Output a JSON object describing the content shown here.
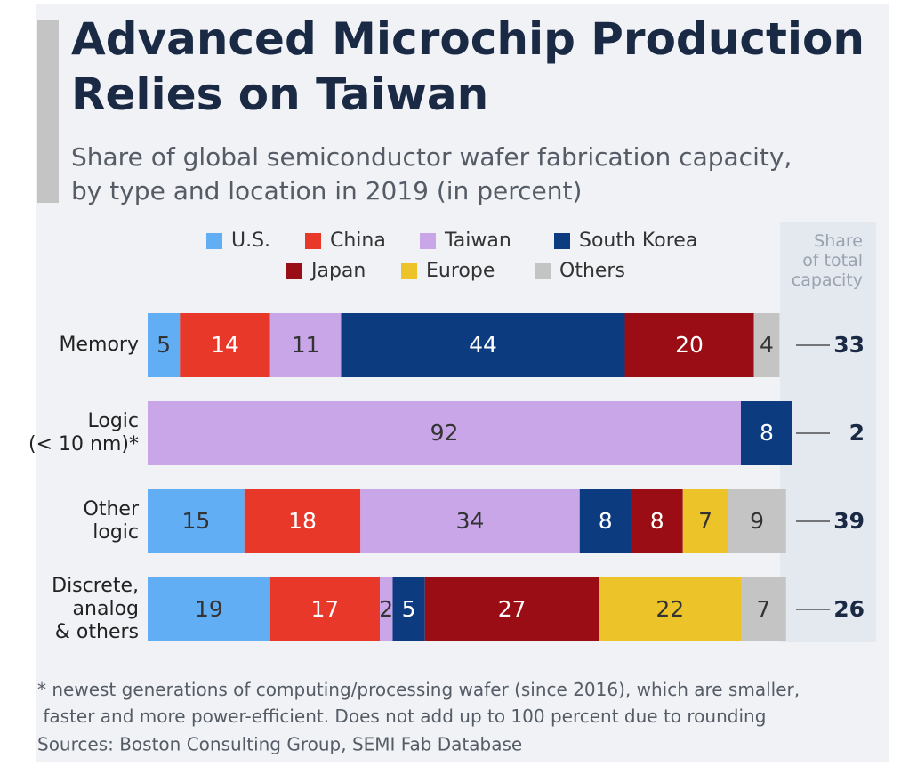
{
  "chart_data": {
    "type": "stacked-bar-horizontal",
    "title": "Advanced Microchip Production\nRelies on Taiwan",
    "subtitle": "Share of global semiconductor wafer fabrication capacity,\nby type and location in 2019 (in percent)",
    "categories": [
      "Memory",
      "Logic\n(< 10 nm)*",
      "Other\nlogic",
      "Discrete,\nanalog\n& others"
    ],
    "series": [
      {
        "name": "U.S.",
        "color": "#62aef5",
        "values": [
          5,
          null,
          15,
          19
        ]
      },
      {
        "name": "China",
        "color": "#e8382a",
        "values": [
          14,
          null,
          18,
          17
        ]
      },
      {
        "name": "Taiwan",
        "color": "#c9a6e8",
        "values": [
          11,
          92,
          34,
          2
        ]
      },
      {
        "name": "South Korea",
        "color": "#0c3b80",
        "values": [
          44,
          8,
          8,
          5
        ]
      },
      {
        "name": "Japan",
        "color": "#9b0d14",
        "values": [
          20,
          null,
          8,
          27
        ]
      },
      {
        "name": "Europe",
        "color": "#edc32a",
        "values": [
          null,
          null,
          7,
          22
        ]
      },
      {
        "name": "Others",
        "color": "#c4c4c4",
        "values": [
          4,
          null,
          9,
          7
        ]
      }
    ],
    "xlim": [
      0,
      100
    ],
    "share_header": "Share\nof total\ncapacity",
    "share_values": [
      33,
      2,
      39,
      26
    ],
    "footnote": "* newest generations of computing/processing wafer (since 2016), which are smaller,\n  faster and more power-efficient. Does not add up to 100 percent due to rounding",
    "source": "Sources: Boston Consulting Group, SEMI Fab Database"
  }
}
